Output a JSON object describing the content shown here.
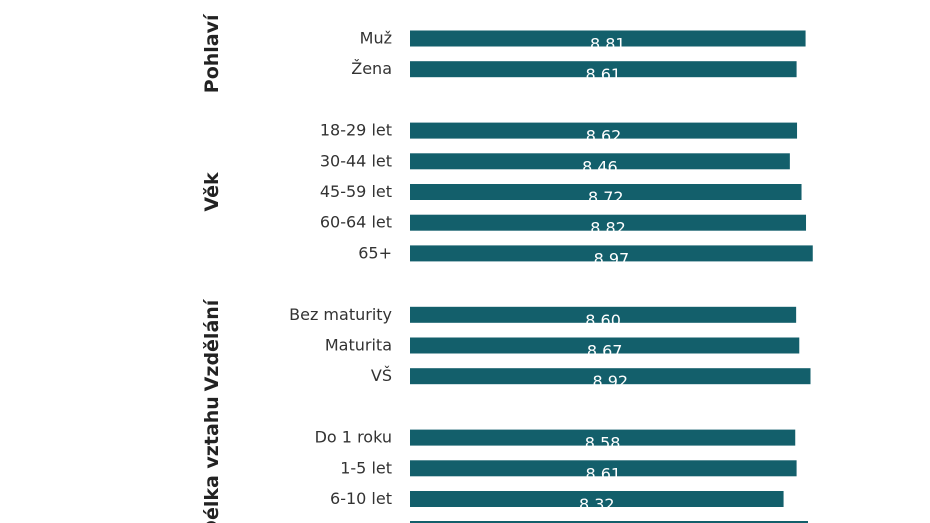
{
  "chart_data": {
    "type": "bar",
    "orientation": "horizontal",
    "bar_color": "#135f6b",
    "value_label_color": "#ffffff",
    "groups": [
      {
        "name": "Pohlaví",
        "items": [
          {
            "category": "Muž",
            "value": 8.81,
            "label": "8.81"
          },
          {
            "category": "Žena",
            "value": 8.61,
            "label": "8.61"
          }
        ]
      },
      {
        "name": "Věk",
        "items": [
          {
            "category": "18-29 let",
            "value": 8.62,
            "label": "8.62"
          },
          {
            "category": "30-44 let",
            "value": 8.46,
            "label": "8.46"
          },
          {
            "category": "45-59 let",
            "value": 8.72,
            "label": "8.72"
          },
          {
            "category": "60-64 let",
            "value": 8.82,
            "label": "8.82"
          },
          {
            "category": "65+",
            "value": 8.97,
            "label": "8.97"
          }
        ]
      },
      {
        "name": "Vzdělání",
        "items": [
          {
            "category": "Bez maturity",
            "value": 8.6,
            "label": "8.60"
          },
          {
            "category": "Maturita",
            "value": 8.67,
            "label": "8.67"
          },
          {
            "category": "VŠ",
            "value": 8.92,
            "label": "8.92"
          }
        ]
      },
      {
        "name": "Délka vztahu",
        "items": [
          {
            "category": "Do 1 roku",
            "value": 8.58,
            "label": "8.58"
          },
          {
            "category": "1-5 let",
            "value": 8.61,
            "label": "8.61"
          },
          {
            "category": "6-10 let",
            "value": 8.32,
            "label": "8.32"
          }
        ]
      }
    ]
  }
}
